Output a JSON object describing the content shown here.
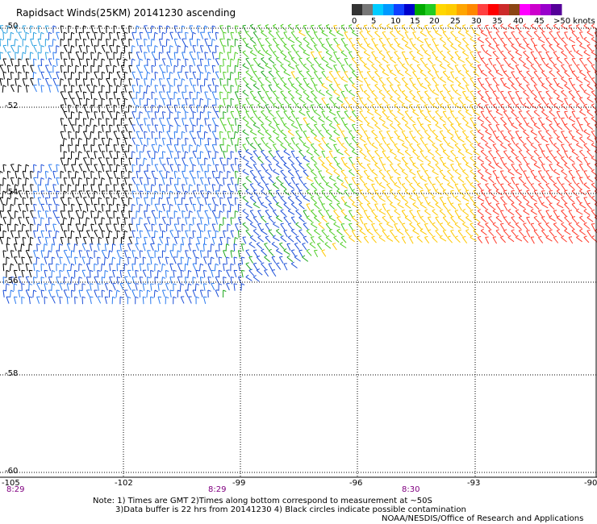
{
  "title": "Rapidsact Winds(25KM) 20141230 ascending",
  "legend": {
    "labels": [
      "0",
      "5",
      "10",
      "15",
      "20",
      "25",
      "30",
      "35",
      "40",
      "45",
      ">50 knots"
    ],
    "colors": [
      "#333333",
      "#777777",
      "#00ccff",
      "#0099ff",
      "#1040ff",
      "#0000cc",
      "#00aa00",
      "#22cc22",
      "#ffd700",
      "#ffcc00",
      "#ffa500",
      "#ff8800",
      "#ff4040",
      "#ff0000",
      "#cc2a2a",
      "#8b4513",
      "#ff00ff",
      "#cc00cc",
      "#9900cc",
      "#550099"
    ]
  },
  "axes": {
    "lat_labels": [
      "-50",
      "-52",
      "-54",
      "-56",
      "-58",
      "-60"
    ],
    "lon_labels": [
      "-105",
      "-102",
      "-99",
      "-96",
      "-93",
      "-90"
    ],
    "time_labels": [
      "8:29",
      "8:29",
      "8:30"
    ]
  },
  "notes": {
    "line1": "Note: 1) Times are GMT 2)Times along bottom correspond to measurement at ~50S",
    "line2": "3)Data buffer is 22 hrs from 20141230 4) Black circles indicate possible contamination",
    "credit": "NOAA/NESDIS/Office of Research and Applications"
  }
}
